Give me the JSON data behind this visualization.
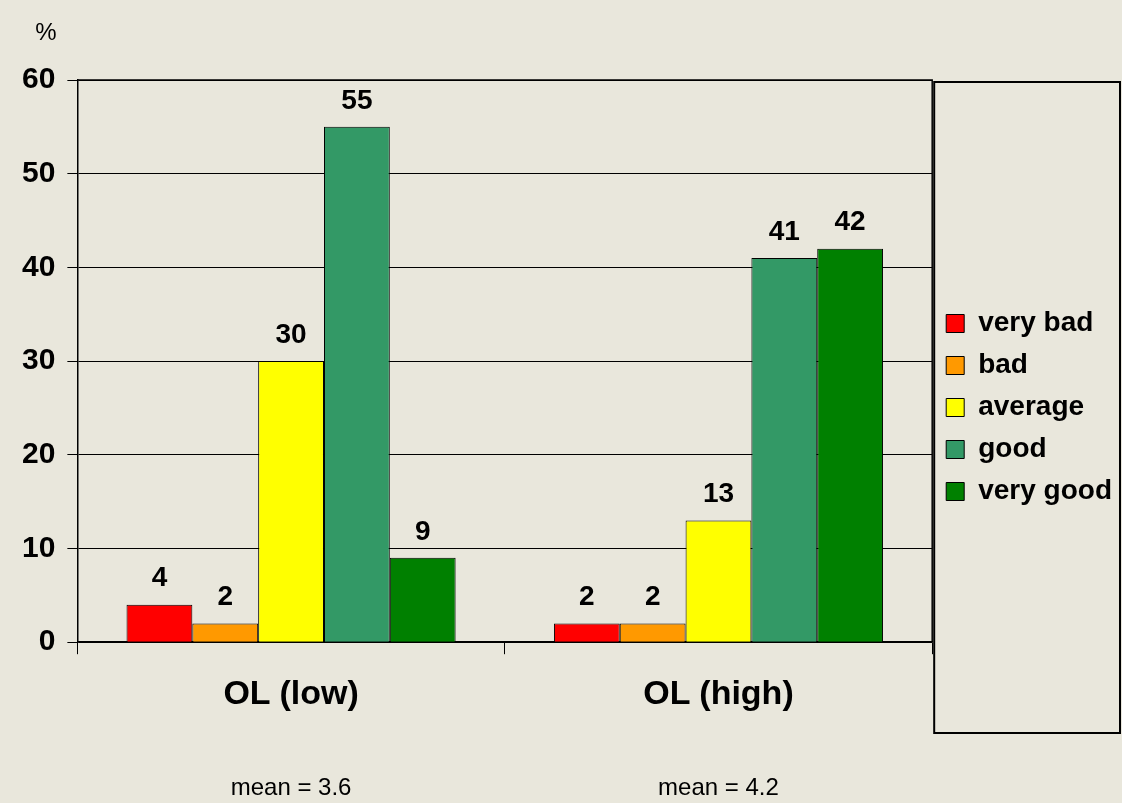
{
  "chart_data": {
    "type": "bar",
    "ylabel": "%",
    "categories": [
      "OL (low)",
      "OL (high)"
    ],
    "series": [
      {
        "name": "very bad",
        "color": "#ff0000",
        "values": [
          4,
          2
        ]
      },
      {
        "name": "bad",
        "color": "#ff9900",
        "values": [
          2,
          2
        ]
      },
      {
        "name": "average",
        "color": "#ffff00",
        "values": [
          30,
          13
        ]
      },
      {
        "name": "good",
        "color": "#339966",
        "values": [
          55,
          41
        ]
      },
      {
        "name": "very good",
        "color": "#008000",
        "values": [
          9,
          42
        ]
      }
    ],
    "ylim": [
      0,
      60
    ],
    "yticks": [
      0,
      10,
      20,
      30,
      40,
      50,
      60
    ],
    "grid": "y",
    "legend": "right",
    "data_labels": true,
    "annotations": [
      "mean = 3.6",
      "mean = 4.2"
    ]
  }
}
